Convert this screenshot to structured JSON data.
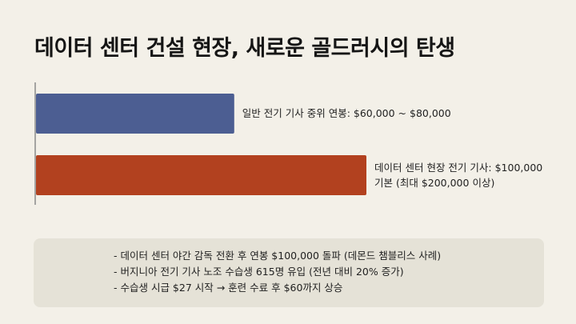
{
  "page": {
    "title": "데이터 센터 건설 현장, 새로운 골드러시의 탄생"
  },
  "chart_data": {
    "type": "bar",
    "orientation": "horizontal",
    "title": "데이터 센터 건설 현장, 새로운 골드러시의 탄생",
    "xlabel": "",
    "ylabel": "",
    "xlim": [
      0,
      100000
    ],
    "grid": false,
    "legend": "none",
    "bars": [
      {
        "label_lines": [
          "일반 전기 기사 중위 연봉: $60,000 ~ $80,000"
        ],
        "value": 60000,
        "color": "#4c5e92"
      },
      {
        "label_lines": [
          "데이터 센터 현장 전기 기사: $100,000",
          "기본 (최대 $200,000 이상)"
        ],
        "value": 100000,
        "color": "#b2411f"
      }
    ]
  },
  "notes": {
    "items": [
      "- 데이터 센터 야간 감독 전환 후 연봉 $100,000 돌파 (데몬드 챔블리스 사례)",
      "- 버지니아 전기 기사 노조 수습생 615명 유입 (전년 대비 20% 증가)",
      "- 수습생 시급 $27 시작 → 훈련 수료 후 $60까지 상승"
    ]
  }
}
